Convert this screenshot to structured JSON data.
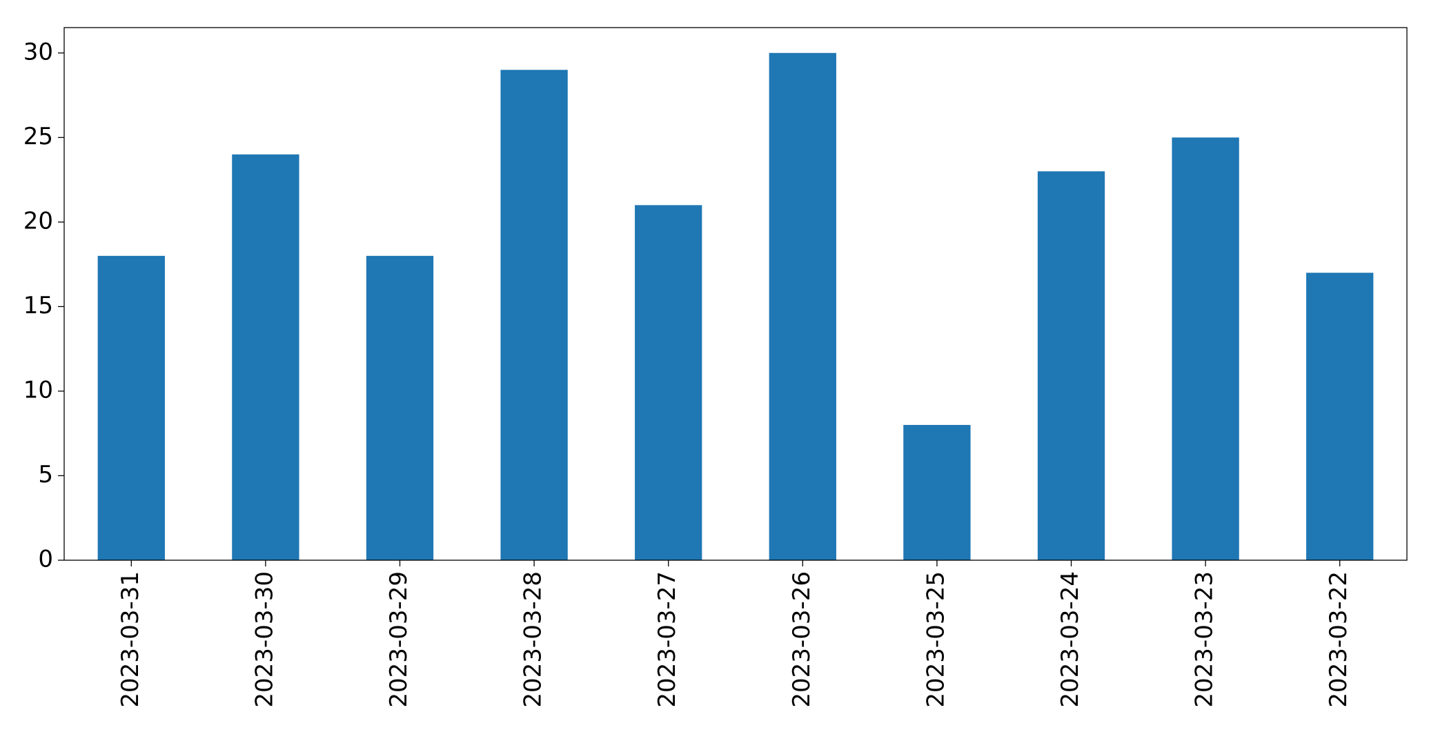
{
  "chart_data": {
    "type": "bar",
    "categories": [
      "2023-03-31",
      "2023-03-30",
      "2023-03-29",
      "2023-03-28",
      "2023-03-27",
      "2023-03-26",
      "2023-03-25",
      "2023-03-24",
      "2023-03-23",
      "2023-03-22"
    ],
    "values": [
      18,
      24,
      18,
      29,
      21,
      30,
      8,
      23,
      25,
      17
    ],
    "color": "#1f77b4",
    "ylim": [
      0,
      31.5
    ],
    "yticks": [
      0,
      5,
      10,
      15,
      20,
      25,
      30
    ],
    "grid": false
  }
}
